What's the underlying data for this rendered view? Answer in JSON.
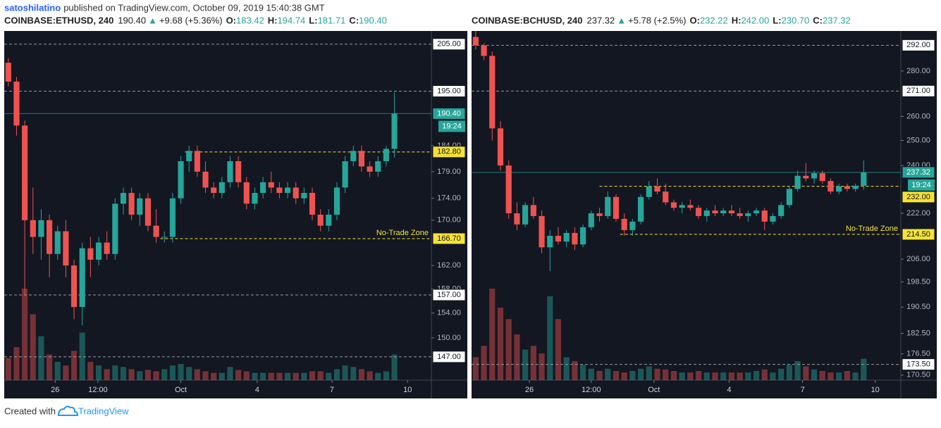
{
  "header": {
    "author": "satoshilatino",
    "text": "published on TradingView.com, October 09, 2019 15:40:38 GMT"
  },
  "footer": {
    "text": "Created with",
    "brand": "TradingView"
  },
  "chart_data": [
    {
      "type": "candlestick",
      "symbol": "COINBASE:ETHUSD, 240",
      "last": "190.40",
      "arrow": "▲",
      "change": "+9.68 (+5.36%)",
      "ohlc": [
        {
          "key": "O:",
          "value": "183.42"
        },
        {
          "key": "H:",
          "value": "194.74"
        },
        {
          "key": "L:",
          "value": "181.71"
        },
        {
          "key": "C:",
          "value": "190.40"
        }
      ],
      "log": true,
      "ylim": [
        143.4,
        207.9
      ],
      "yticks": [
        {
          "value": 184,
          "label": "184.00"
        },
        {
          "value": 179,
          "label": "179.00"
        },
        {
          "value": 174,
          "label": "174.00"
        },
        {
          "value": 170,
          "label": "170.00"
        },
        {
          "value": 162,
          "label": "162.00"
        },
        {
          "value": 158,
          "label": "158.00"
        },
        {
          "value": 154,
          "label": "154.00"
        },
        {
          "value": 150,
          "label": "150.00"
        }
      ],
      "xlim": [
        -0.5,
        51.5
      ],
      "xticks": [
        {
          "value": 5.7,
          "label": "26"
        },
        {
          "value": 10.9,
          "label": "12:00"
        },
        {
          "value": 21.0,
          "label": "Oct"
        },
        {
          "value": 30.3,
          "label": "4"
        },
        {
          "value": 39.4,
          "label": "7"
        },
        {
          "value": 48.6,
          "label": "10"
        }
      ],
      "open": [
        201,
        197,
        188,
        170,
        167,
        170,
        164,
        168,
        162,
        155,
        165,
        163,
        166,
        164,
        173,
        175,
        171,
        174,
        169,
        167,
        167,
        174,
        181,
        183,
        179,
        176,
        175,
        177,
        181,
        177,
        173,
        175,
        177,
        176,
        175,
        176,
        174,
        175,
        171,
        169,
        171,
        176,
        181,
        183,
        180,
        179,
        181,
        183.42
      ],
      "high": [
        202,
        198,
        189,
        176,
        172,
        171,
        169,
        170,
        163,
        166,
        167,
        167,
        168,
        174,
        176,
        176,
        175,
        175,
        172,
        168,
        175,
        182,
        184,
        184,
        181,
        177,
        178,
        182,
        182,
        178,
        176,
        178,
        179,
        177,
        177,
        177,
        176,
        176,
        172,
        172,
        177,
        182,
        184,
        184,
        181,
        182,
        184,
        194.74
      ],
      "low": [
        196,
        186,
        157,
        164,
        163,
        160,
        163,
        160,
        153,
        152,
        160,
        162,
        163,
        163,
        171,
        170,
        169,
        168,
        166,
        166,
        166,
        173,
        179,
        178,
        175,
        174,
        174,
        176,
        176,
        172,
        172,
        174,
        175,
        174,
        174,
        173,
        173,
        170,
        168,
        168,
        170,
        175,
        180,
        179,
        178,
        178,
        180,
        181.71
      ],
      "close": [
        197,
        188,
        170,
        167,
        170,
        164,
        168,
        162,
        155,
        165,
        163,
        166,
        164,
        173,
        175,
        171,
        174,
        169,
        167,
        167,
        174,
        181,
        183,
        179,
        176,
        175,
        177,
        181,
        177,
        173,
        175,
        177,
        176,
        175,
        176,
        174,
        175,
        171,
        169,
        171,
        176,
        181,
        183,
        180,
        179,
        181,
        183.4,
        190.4
      ],
      "volume": [
        30,
        45,
        125,
        90,
        60,
        35,
        25,
        20,
        40,
        65,
        25,
        20,
        15,
        20,
        18,
        15,
        12,
        14,
        12,
        15,
        20,
        22,
        18,
        15,
        12,
        10,
        10,
        18,
        14,
        12,
        10,
        10,
        10,
        10,
        10,
        10,
        10,
        12,
        12,
        10,
        15,
        20,
        18,
        15,
        12,
        10,
        12,
        35
      ],
      "up_color": "#26a69a",
      "down_color": "#ef5350",
      "hlines": [
        {
          "value": 205,
          "label": "205.00",
          "kind": "level"
        },
        {
          "value": 195,
          "label": "195.00",
          "kind": "level"
        },
        {
          "value": 190.4,
          "label": "190.40",
          "kind": "last",
          "countdown": "19:24"
        },
        {
          "value": 182.8,
          "label": "182.80",
          "kind": "zone",
          "from": 21.5
        },
        {
          "value": 166.7,
          "label": "166.70",
          "kind": "zone",
          "from": 18.5,
          "note": "No-Trade Zone"
        },
        {
          "value": 157,
          "label": "157.00",
          "kind": "level"
        },
        {
          "value": 147,
          "label": "147.00",
          "kind": "level"
        }
      ]
    },
    {
      "type": "candlestick",
      "symbol": "COINBASE:BCHUSD, 240",
      "last": "237.32",
      "arrow": "▲",
      "change": "+5.78 (+2.5%)",
      "ohlc": [
        {
          "key": "O:",
          "value": "232.22"
        },
        {
          "key": "H:",
          "value": "242.00"
        },
        {
          "key": "L:",
          "value": "230.70"
        },
        {
          "key": "C:",
          "value": "237.32"
        }
      ],
      "log": true,
      "ylim": [
        169.1,
        298.9
      ],
      "yticks": [
        {
          "value": 280,
          "label": "280.00"
        },
        {
          "value": 260,
          "label": "260.00"
        },
        {
          "value": 250,
          "label": "250.00"
        },
        {
          "value": 240,
          "label": "240.00"
        },
        {
          "value": 222,
          "label": "222.00"
        },
        {
          "value": 206,
          "label": "206.00"
        },
        {
          "value": 198.5,
          "label": "198.50"
        },
        {
          "value": 190.5,
          "label": "190.50"
        },
        {
          "value": 182.5,
          "label": "182.50"
        },
        {
          "value": 176.5,
          "label": "176.50"
        },
        {
          "value": 170.5,
          "label": "170.50"
        }
      ],
      "xlim": [
        -0.5,
        51.5
      ],
      "xticks": [
        {
          "value": 6.5,
          "label": "26"
        },
        {
          "value": 14.0,
          "label": "12:00"
        },
        {
          "value": 21.6,
          "label": "Oct"
        },
        {
          "value": 30.7,
          "label": "4"
        },
        {
          "value": 39.6,
          "label": "7"
        },
        {
          "value": 48.4,
          "label": "10"
        }
      ],
      "open": [
        296,
        292,
        287,
        255,
        240,
        222,
        218,
        225,
        221,
        210,
        214,
        212,
        215,
        211,
        217,
        222,
        221,
        228,
        220,
        216,
        219,
        228,
        232,
        230,
        226,
        224,
        225,
        224,
        221,
        223,
        222,
        223,
        222,
        221,
        222,
        223,
        219,
        221,
        225,
        231,
        236,
        235,
        237,
        234,
        230,
        232,
        231,
        232.22
      ],
      "high": [
        299,
        293,
        289,
        258,
        242,
        226,
        226,
        228,
        223,
        216,
        217,
        216,
        217,
        218,
        223,
        224,
        230,
        229,
        222,
        220,
        229,
        234,
        235,
        233,
        227,
        226,
        227,
        225,
        224,
        225,
        224,
        225,
        224,
        223,
        224,
        224,
        222,
        226,
        232,
        238,
        241,
        238,
        238,
        235,
        233,
        233,
        233,
        242
      ],
      "low": [
        290,
        285,
        250,
        238,
        220,
        216,
        217,
        220,
        208,
        202,
        211,
        210,
        209,
        210,
        216,
        219,
        220,
        219,
        214,
        214,
        218,
        227,
        229,
        225,
        223,
        222,
        223,
        220,
        219,
        221,
        221,
        221,
        220,
        219,
        221,
        216,
        218,
        220,
        224,
        230,
        234,
        233,
        233,
        229,
        229,
        230,
        230,
        230.7
      ],
      "close": [
        292,
        287,
        255,
        240,
        222,
        218,
        225,
        221,
        210,
        214,
        212,
        215,
        211,
        217,
        222,
        221,
        228,
        220,
        216,
        219,
        228,
        232,
        230,
        226,
        224,
        225,
        224,
        221,
        223,
        222,
        223,
        222,
        221,
        222,
        223,
        219,
        221,
        225,
        231,
        236,
        235,
        237,
        234,
        230,
        232,
        231,
        232.2,
        237.32
      ],
      "volume": [
        30,
        45,
        120,
        95,
        80,
        60,
        40,
        45,
        35,
        110,
        80,
        30,
        25,
        20,
        15,
        12,
        15,
        12,
        10,
        12,
        15,
        18,
        15,
        14,
        12,
        10,
        10,
        12,
        10,
        10,
        10,
        10,
        10,
        10,
        12,
        14,
        10,
        15,
        20,
        25,
        18,
        14,
        12,
        10,
        10,
        12,
        10,
        28
      ],
      "up_color": "#26a69a",
      "down_color": "#ef5350",
      "hlines": [
        {
          "value": 292,
          "label": "292.00",
          "kind": "level"
        },
        {
          "value": 271,
          "label": "271.00",
          "kind": "level"
        },
        {
          "value": 237.32,
          "label": "237.32",
          "kind": "last",
          "countdown": "19:24"
        },
        {
          "value": 232,
          "label": "232.00",
          "kind": "zone",
          "from": 15
        },
        {
          "value": 214.5,
          "label": "214.50",
          "kind": "zone",
          "from": 17.5,
          "note": "No-Trade Zone"
        },
        {
          "value": 173.5,
          "label": "173.50",
          "kind": "level"
        }
      ]
    }
  ]
}
